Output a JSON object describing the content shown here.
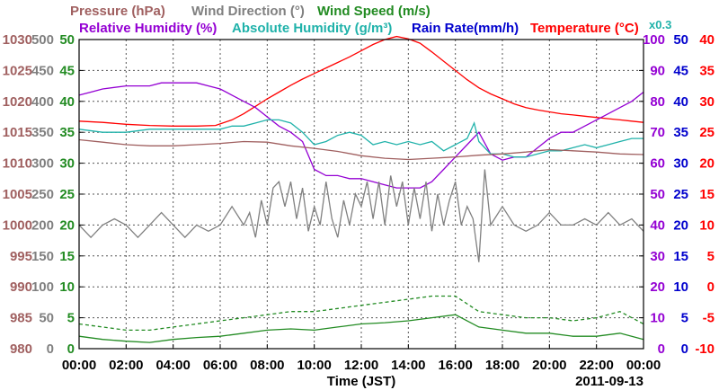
{
  "chart_data": {
    "type": "line",
    "date": "2011-09-13",
    "xlabel": "Time (JST)",
    "x_ticks": [
      "00:00",
      "02:00",
      "04:00",
      "06:00",
      "08:00",
      "10:00",
      "12:00",
      "14:00",
      "16:00",
      "18:00",
      "20:00",
      "22:00",
      "00:00"
    ],
    "x_range_hours": [
      0,
      24
    ],
    "grid": true,
    "legend": {
      "row1": [
        {
          "label": "Pressure (hPa)",
          "color": "#a06060"
        },
        {
          "label": "Wind Direction (°)",
          "color": "#808080"
        },
        {
          "label": "Wind Speed (m/s)",
          "color": "#228b22"
        }
      ],
      "row2": [
        {
          "label": "Relative Humidity (%)",
          "color": "#9400d3"
        },
        {
          "label": "Absolute Humidity (g/m³)",
          "color": "#20b2aa"
        },
        {
          "label": "Rain Rate(mm/h)",
          "color": "#0000cd"
        },
        {
          "label": "Temperature (°C)",
          "color": "#ff0000"
        }
      ],
      "abs_humidity_scale": "x0.3"
    },
    "axes": {
      "pressure": {
        "color": "#a06060",
        "range": [
          980,
          1030
        ],
        "ticks": [
          "1030",
          "1025",
          "1020",
          "1015",
          "1010",
          "1005",
          "1000",
          "995",
          "990",
          "985",
          "980"
        ]
      },
      "wind_direction": {
        "color": "#808080",
        "range": [
          0,
          500
        ],
        "ticks": [
          "500",
          "450",
          "400",
          "350",
          "300",
          "250",
          "200",
          "150",
          "100",
          "50",
          "0"
        ]
      },
      "wind_speed": {
        "color": "#228b22",
        "range": [
          0,
          50
        ],
        "ticks": [
          "50",
          "45",
          "40",
          "35",
          "30",
          "25",
          "20",
          "15",
          "10",
          "5",
          "0"
        ]
      },
      "relative_humidity": {
        "color": "#9400d3",
        "range": [
          0,
          100
        ],
        "ticks": [
          "100",
          "90",
          "80",
          "70",
          "60",
          "50",
          "40",
          "30",
          "20",
          "10",
          "0"
        ]
      },
      "rain_rate": {
        "color": "#0000cd",
        "range": [
          0,
          50
        ],
        "ticks": [
          "50",
          "45",
          "40",
          "35",
          "30",
          "25",
          "20",
          "15",
          "10",
          "5",
          "0"
        ]
      },
      "temperature": {
        "color": "#ff0000",
        "range": [
          -10,
          40
        ],
        "ticks": [
          "40",
          "35",
          "30",
          "25",
          "20",
          "15",
          "10",
          "5",
          "0",
          "-5",
          "-10"
        ]
      }
    },
    "series": [
      {
        "name": "Temperature",
        "axis": "temperature",
        "color": "#ff0000",
        "x": [
          0,
          1,
          2,
          3,
          4,
          5,
          5.8,
          6.5,
          7,
          7.5,
          8,
          8.5,
          9,
          9.5,
          10,
          10.5,
          11,
          11.5,
          12,
          12.5,
          13,
          13.5,
          14,
          14.5,
          15,
          15.5,
          16,
          16.5,
          17,
          17.5,
          18,
          18.5,
          19,
          19.5,
          20,
          20.5,
          21,
          21.5,
          22,
          22.5,
          23,
          23.5,
          24
        ],
        "values": [
          26.8,
          26.6,
          26.3,
          26.1,
          26.0,
          26.0,
          26.1,
          27.0,
          28.0,
          29.2,
          30.4,
          31.5,
          32.6,
          33.6,
          34.5,
          35.4,
          36.3,
          37.2,
          38.2,
          39.2,
          40.0,
          40.5,
          40.1,
          39.4,
          38.0,
          36.5,
          35.0,
          33.5,
          32.2,
          31.2,
          30.4,
          29.6,
          29.0,
          28.6,
          28.3,
          28.0,
          27.8,
          27.6,
          27.4,
          27.2,
          27.0,
          26.8,
          26.6
        ]
      },
      {
        "name": "Relative Humidity",
        "axis": "relative_humidity",
        "color": "#9400d3",
        "x": [
          0,
          0.5,
          1,
          2,
          3,
          3.5,
          4,
          4.5,
          5,
          5.5,
          6,
          6.5,
          7,
          7.5,
          8,
          8.5,
          9,
          9.5,
          10,
          10.5,
          11,
          11.5,
          12,
          12.5,
          13,
          13.5,
          14,
          14.5,
          15,
          15.5,
          16,
          16.5,
          17,
          17.5,
          18,
          18.5,
          19,
          19.5,
          20,
          20.5,
          21,
          21.5,
          22,
          22.5,
          23,
          23.5,
          24
        ],
        "values": [
          82,
          83,
          84,
          85,
          85,
          86,
          86,
          86,
          86,
          85,
          84,
          82,
          80,
          78,
          75,
          72,
          70,
          67,
          58,
          56,
          56,
          55,
          55,
          54,
          53,
          52,
          52,
          52,
          54,
          58,
          62,
          66,
          70,
          63,
          61,
          62,
          62,
          65,
          68,
          70,
          70,
          72,
          74,
          76,
          78,
          80,
          83
        ]
      },
      {
        "name": "Absolute Humidity",
        "axis": "relative_humidity",
        "color": "#20b2aa",
        "x": [
          0,
          1,
          2,
          3,
          4,
          5,
          6,
          6.5,
          7,
          7.5,
          8,
          8.5,
          9,
          9.5,
          10,
          10.5,
          11,
          11.5,
          12,
          12.5,
          13,
          13.5,
          14,
          14.5,
          15,
          15.5,
          16,
          16.5,
          16.8,
          17,
          17.5,
          18,
          18.5,
          19,
          19.5,
          20,
          20.5,
          21,
          21.5,
          22,
          22.5,
          23,
          23.5,
          24
        ],
        "values": [
          71,
          70,
          70,
          71,
          71,
          71,
          71,
          72,
          72,
          73,
          74,
          74,
          73,
          70,
          66,
          67,
          69,
          70,
          69,
          66,
          67,
          66,
          67,
          66,
          67,
          64,
          66,
          68,
          73,
          67,
          63,
          63,
          62,
          62,
          63,
          64,
          64,
          65,
          66,
          65,
          66,
          67,
          68,
          68
        ]
      },
      {
        "name": "Pressure",
        "axis": "pressure",
        "color": "#a06060",
        "x": [
          0,
          1,
          2,
          3,
          4,
          5,
          6,
          7,
          8,
          9,
          10,
          11,
          12,
          13,
          14,
          15,
          16,
          17,
          18,
          19,
          20,
          21,
          22,
          23,
          24
        ],
        "values": [
          1013.8,
          1013.4,
          1013.0,
          1012.8,
          1012.8,
          1013.0,
          1013.2,
          1013.5,
          1013.4,
          1012.8,
          1012.4,
          1011.9,
          1011.2,
          1010.8,
          1010.6,
          1010.8,
          1011.0,
          1011.3,
          1011.5,
          1011.8,
          1012.2,
          1012.0,
          1011.8,
          1011.5,
          1011.4
        ]
      },
      {
        "name": "Wind Direction",
        "axis": "wind_direction",
        "color": "#808080",
        "x": [
          0,
          0.5,
          1,
          1.5,
          2,
          2.5,
          3,
          3.5,
          4,
          4.5,
          5,
          5.5,
          6,
          6.5,
          7,
          7.25,
          7.5,
          7.75,
          8,
          8.25,
          8.5,
          8.75,
          9,
          9.25,
          9.5,
          9.75,
          10,
          10.25,
          10.5,
          10.75,
          11,
          11.25,
          11.5,
          11.75,
          12,
          12.25,
          12.5,
          12.75,
          13,
          13.25,
          13.5,
          13.75,
          14,
          14.25,
          14.5,
          14.75,
          15,
          15.25,
          15.5,
          15.75,
          16,
          16.25,
          16.5,
          16.75,
          17,
          17.25,
          17.5,
          18,
          18.5,
          19,
          19.5,
          20,
          20.5,
          21,
          21.5,
          22,
          22.5,
          23,
          23.5,
          24
        ],
        "values": [
          200,
          180,
          200,
          210,
          200,
          180,
          200,
          220,
          200,
          180,
          200,
          190,
          200,
          230,
          200,
          220,
          180,
          240,
          200,
          260,
          270,
          230,
          270,
          210,
          260,
          190,
          230,
          200,
          270,
          210,
          180,
          240,
          200,
          250,
          230,
          270,
          210,
          270,
          200,
          280,
          230,
          270,
          200,
          260,
          210,
          270,
          190,
          250,
          200,
          240,
          270,
          200,
          230,
          210,
          140,
          290,
          200,
          230,
          200,
          190,
          200,
          220,
          200,
          200,
          210,
          200,
          220,
          200,
          210,
          190
        ]
      },
      {
        "name": "Wind Speed",
        "axis": "wind_speed",
        "color": "#228b22",
        "x": [
          0,
          1,
          2,
          3,
          4,
          5,
          6,
          7,
          8,
          9,
          10,
          11,
          12,
          13,
          14,
          15,
          16,
          17,
          18,
          19,
          20,
          21,
          22,
          23,
          24
        ],
        "values": [
          2.0,
          1.5,
          1.2,
          1.0,
          1.5,
          1.8,
          2.0,
          2.5,
          3.0,
          3.2,
          3.0,
          3.5,
          4.0,
          4.2,
          4.5,
          5.0,
          5.5,
          3.5,
          3.0,
          2.5,
          2.5,
          2.0,
          2.0,
          2.5,
          1.5
        ]
      },
      {
        "name": "Wind Speed (gust)",
        "axis": "wind_speed",
        "color": "#228b22",
        "x": [
          0,
          1,
          2,
          3,
          4,
          5,
          6,
          7,
          8,
          9,
          10,
          11,
          12,
          13,
          14,
          15,
          16,
          17,
          18,
          19,
          20,
          21,
          22,
          23,
          24
        ],
        "values": [
          4.0,
          3.5,
          3.0,
          3.0,
          3.5,
          4.0,
          4.5,
          5.0,
          5.5,
          6.0,
          6.0,
          6.5,
          7.0,
          7.5,
          8.0,
          8.5,
          8.5,
          6.0,
          5.5,
          5.0,
          5.0,
          4.5,
          5.0,
          6.0,
          4.0
        ]
      }
    ]
  }
}
